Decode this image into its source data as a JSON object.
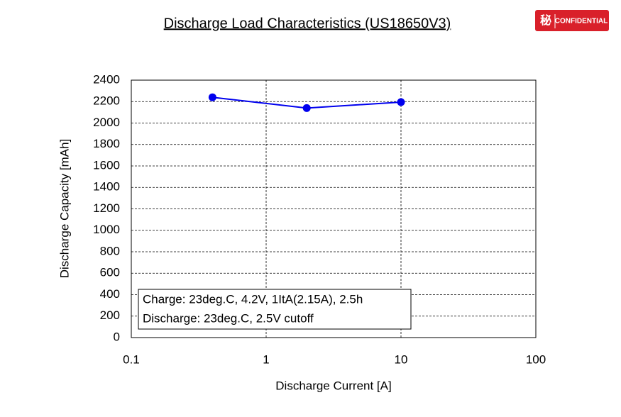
{
  "chart_data": {
    "type": "line",
    "title": "Discharge Load Characteristics (US18650V3)",
    "badge": {
      "icon": "秘",
      "text": "CONFIDENTIAL"
    },
    "x_label": "Discharge Current [A]",
    "y_label": "Discharge Capacity [mAh]",
    "x": [
      0.4,
      2,
      10
    ],
    "series": [
      {
        "name": "US18650V3",
        "color": "#0000ee",
        "values": [
          2240,
          2140,
          2195
        ]
      }
    ],
    "xlim": [
      0.1,
      100
    ],
    "xticks": [
      0.1,
      1,
      10,
      100
    ],
    "xscale": "log",
    "ylim": [
      0,
      2400
    ],
    "yticks": [
      0,
      200,
      400,
      600,
      800,
      1000,
      1200,
      1400,
      1600,
      1800,
      2000,
      2200,
      2400
    ],
    "grid": true,
    "annotation": [
      "Charge: 23deg.C, 4.2V, 1ItA(2.15A), 2.5h",
      "Discharge: 23deg.C, 2.5V cutoff"
    ]
  }
}
